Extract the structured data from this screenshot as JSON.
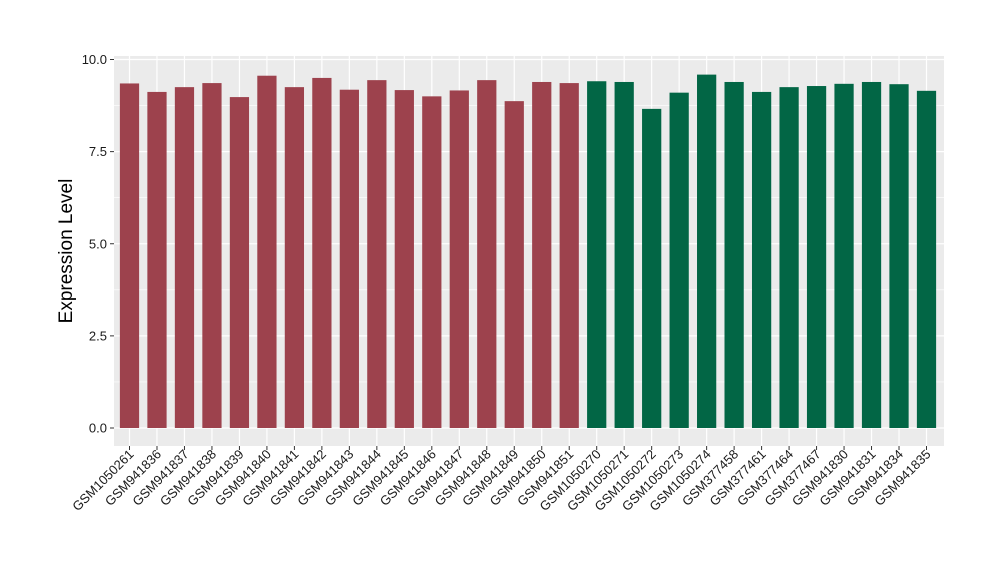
{
  "chart_data": {
    "type": "bar",
    "title": "",
    "xlabel": "",
    "ylabel": "Expression Level",
    "ylim": [
      0,
      10
    ],
    "yticks": [
      "0.0",
      "2.5",
      "5.0",
      "7.5",
      "10.0"
    ],
    "ytick_values": [
      0,
      2.5,
      5,
      7.5,
      10
    ],
    "grid": true,
    "categories": [
      "GSM1050261",
      "GSM941836",
      "GSM941837",
      "GSM941838",
      "GSM941839",
      "GSM941840",
      "GSM941841",
      "GSM941842",
      "GSM941843",
      "GSM941844",
      "GSM941845",
      "GSM941846",
      "GSM941847",
      "GSM941848",
      "GSM941849",
      "GSM941850",
      "GSM941851",
      "GSM1050270",
      "GSM1050271",
      "GSM1050272",
      "GSM1050273",
      "GSM1050274",
      "GSM377458",
      "GSM377461",
      "GSM377464",
      "GSM377467",
      "GSM941830",
      "GSM941831",
      "GSM941834",
      "GSM941835"
    ],
    "values": [
      9.35,
      9.12,
      9.25,
      9.36,
      8.98,
      9.56,
      9.25,
      9.5,
      9.18,
      9.44,
      9.17,
      9.0,
      9.16,
      9.44,
      8.87,
      9.39,
      9.36,
      9.41,
      9.39,
      8.66,
      9.1,
      9.59,
      9.39,
      9.12,
      9.25,
      9.28,
      9.34,
      9.39,
      9.33,
      9.15
    ],
    "groups": [
      {
        "count": 17,
        "color": "#9d424d"
      },
      {
        "count": 13,
        "color": "#026645"
      }
    ],
    "colors": {
      "panel_background": "#ebebeb",
      "grid": "#ffffff",
      "tick": "#333333"
    }
  }
}
